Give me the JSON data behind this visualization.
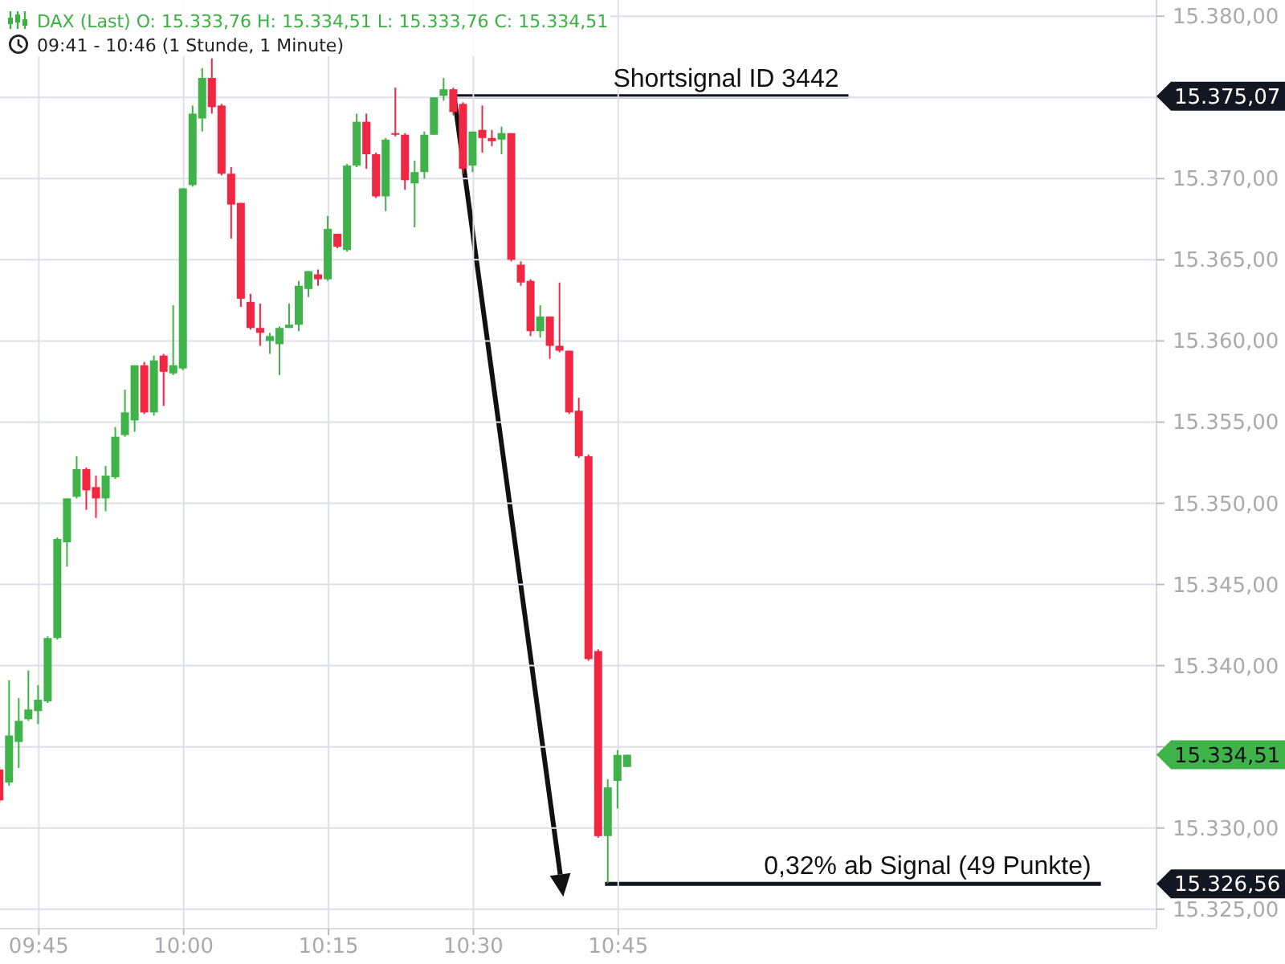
{
  "chart_data": {
    "type": "candlestick",
    "title": "DAX (Last) O: 15.333,76 H: 15.334,51 L: 15.333,76 C: 15.334,51",
    "subtitle": "09:41 - 10:46 (1 Stunde, 1 Minute)",
    "x": [
      9.6833,
      9.7,
      9.7167,
      9.7333,
      9.75,
      9.7667,
      9.7833,
      9.8,
      9.8167,
      9.8333,
      9.85,
      9.8667,
      9.8833,
      9.9,
      9.9167,
      9.9333,
      9.95,
      9.9667,
      9.9833,
      10,
      10.0167,
      10.0333,
      10.05,
      10.0667,
      10.0833,
      10.1,
      10.1167,
      10.1333,
      10.15,
      10.1667,
      10.1833,
      10.2,
      10.2167,
      10.2333,
      10.25,
      10.2667,
      10.2833,
      10.3,
      10.3167,
      10.3333,
      10.35,
      10.3667,
      10.3833,
      10.4,
      10.4167,
      10.4333,
      10.45,
      10.4667,
      10.4833,
      10.5,
      10.5167,
      10.5333,
      10.55,
      10.5667,
      10.5833,
      10.6,
      10.6167,
      10.6333,
      10.65,
      10.6667,
      10.6833,
      10.7,
      10.7167,
      10.7333,
      10.75,
      10.7667
    ],
    "ohlc": [
      [
        15333.6,
        15333.8,
        15331.5,
        15331.7
      ],
      [
        15332.8,
        15339.1,
        15332.6,
        15335.7
      ],
      [
        15335.3,
        15338.0,
        15333.7,
        15336.6
      ],
      [
        15336.7,
        15339.7,
        15336.6,
        15337.3
      ],
      [
        15337.2,
        15338.8,
        15336.4,
        15337.9
      ],
      [
        15337.8,
        15341.8,
        15337.7,
        15341.7
      ],
      [
        15341.7,
        15347.9,
        15341.6,
        15347.8
      ],
      [
        15347.6,
        15350.3,
        15346.1,
        15350.3
      ],
      [
        15350.4,
        15352.9,
        15350.3,
        15352.1
      ],
      [
        15352.1,
        15352.2,
        15349.6,
        15350.8
      ],
      [
        15351.0,
        15351.7,
        15349.1,
        15350.3
      ],
      [
        15350.3,
        15352.3,
        15349.5,
        15351.7
      ],
      [
        15351.6,
        15354.7,
        15351.5,
        15354.1
      ],
      [
        15354.2,
        15357.0,
        15354.1,
        15355.6
      ],
      [
        15355.1,
        15358.5,
        15354.4,
        15358.5
      ],
      [
        15358.5,
        15358.7,
        15355.5,
        15355.6
      ],
      [
        15355.6,
        15359.1,
        15355.4,
        15358.8
      ],
      [
        15359.1,
        15359.2,
        15356.0,
        15358.1
      ],
      [
        15358.0,
        15362.2,
        15357.9,
        15358.5
      ],
      [
        15358.3,
        15369.4,
        15358.2,
        15369.4
      ],
      [
        15369.6,
        15374.5,
        15369.5,
        15374.0
      ],
      [
        15373.7,
        15376.8,
        15372.9,
        15376.2
      ],
      [
        15376.2,
        15377.4,
        15374.0,
        15374.4
      ],
      [
        15374.5,
        15374.6,
        15370.2,
        15370.3
      ],
      [
        15370.3,
        15370.7,
        15366.3,
        15368.4
      ],
      [
        15368.5,
        15368.5,
        15362.1,
        15362.6
      ],
      [
        15362.4,
        15362.9,
        15360.7,
        15360.8
      ],
      [
        15360.8,
        15362.3,
        15359.7,
        15360.5
      ],
      [
        15360.0,
        15360.5,
        15359.2,
        15360.3
      ],
      [
        15359.8,
        15360.9,
        15357.9,
        15360.8
      ],
      [
        15360.8,
        15362.3,
        15360.8,
        15361.0
      ],
      [
        15361.0,
        15363.7,
        15360.6,
        15363.4
      ],
      [
        15363.2,
        15364.3,
        15362.7,
        15364.3
      ],
      [
        15364.1,
        15364.4,
        15363.4,
        15363.8
      ],
      [
        15363.8,
        15367.7,
        15363.7,
        15366.9
      ],
      [
        15366.6,
        15366.6,
        15365.7,
        15365.8
      ],
      [
        15365.6,
        15370.9,
        15365.5,
        15370.8
      ],
      [
        15370.8,
        15374.0,
        15370.7,
        15373.5
      ],
      [
        15373.5,
        15374.0,
        15370.6,
        15371.5
      ],
      [
        15371.5,
        15371.6,
        15368.8,
        15368.9
      ],
      [
        15368.9,
        15372.5,
        15368.0,
        15372.4
      ],
      [
        15372.8,
        15375.6,
        15372.6,
        15372.7
      ],
      [
        15372.7,
        15372.8,
        15369.3,
        15369.9
      ],
      [
        15369.7,
        15371.1,
        15367.0,
        15370.4
      ],
      [
        15370.4,
        15372.9,
        15370.0,
        15372.7
      ],
      [
        15372.7,
        15375.0,
        15372.7,
        15375.0
      ],
      [
        15375.1,
        15376.2,
        15374.8,
        15375.5
      ],
      [
        15375.5,
        15375.6,
        15373.9,
        15374.1
      ],
      [
        15374.6,
        15374.7,
        15370.3,
        15370.6
      ],
      [
        15370.8,
        15372.9,
        15370.4,
        15372.9
      ],
      [
        15373.0,
        15374.5,
        15371.6,
        15372.5
      ],
      [
        15372.5,
        15373.0,
        15372.0,
        15372.3
      ],
      [
        15372.4,
        15373.2,
        15371.5,
        15372.8
      ],
      [
        15372.8,
        15372.8,
        15364.9,
        15365.0
      ],
      [
        15364.7,
        15364.9,
        15363.4,
        15363.6
      ],
      [
        15363.7,
        15363.8,
        15360.3,
        15360.6
      ],
      [
        15360.6,
        15362.2,
        15360.2,
        15361.5
      ],
      [
        15361.5,
        15361.5,
        15358.9,
        15359.7
      ],
      [
        15359.7,
        15363.6,
        15359.3,
        15359.4
      ],
      [
        15359.4,
        15359.4,
        15355.5,
        15355.6
      ],
      [
        15355.7,
        15356.5,
        15352.8,
        15352.9
      ],
      [
        15352.9,
        15353.0,
        15340.3,
        15340.4
      ],
      [
        15340.9,
        15341.0,
        15329.4,
        15329.5
      ],
      [
        15329.5,
        15333.0,
        15326.6,
        15332.5
      ],
      [
        15332.9,
        15334.8,
        15331.2,
        15334.5
      ],
      [
        15333.76,
        15334.51,
        15333.76,
        15334.51
      ]
    ],
    "colors": [
      "#f02642",
      "#3fb24a",
      "#3fb24a",
      "#3fb24a",
      "#3fb24a",
      "#3fb24a",
      "#3fb24a",
      "#3fb24a",
      "#3fb24a",
      "#f02642",
      "#f02642",
      "#3fb24a",
      "#3fb24a",
      "#3fb24a",
      "#3fb24a",
      "#f02642",
      "#3fb24a",
      "#f02642",
      "#3fb24a",
      "#3fb24a",
      "#3fb24a",
      "#3fb24a",
      "#f02642",
      "#f02642",
      "#f02642",
      "#f02642",
      "#f02642",
      "#f02642",
      "#3fb24a",
      "#3fb24a",
      "#3fb24a",
      "#3fb24a",
      "#3fb24a",
      "#f02642",
      "#3fb24a",
      "#f02642",
      "#3fb24a",
      "#3fb24a",
      "#f02642",
      "#f02642",
      "#3fb24a",
      "#f02642",
      "#f02642",
      "#3fb24a",
      "#3fb24a",
      "#3fb24a",
      "#3fb24a",
      "#f02642",
      "#f02642",
      "#3fb24a",
      "#f02642",
      "#f02642",
      "#3fb24a",
      "#f02642",
      "#f02642",
      "#f02642",
      "#3fb24a",
      "#f02642",
      "#f02642",
      "#f02642",
      "#f02642",
      "#f02642",
      "#f02642",
      "#3fb24a",
      "#3fb24a",
      "#3fb24a"
    ],
    "xlim": [
      9.683,
      11.679
    ],
    "xticks": [
      {
        "value": 9.75,
        "label": "09:45"
      },
      {
        "value": 10,
        "label": "10:00"
      },
      {
        "value": 10.25,
        "label": "10:15"
      },
      {
        "value": 10.5,
        "label": "10:30"
      },
      {
        "value": 10.75,
        "label": "10:45"
      }
    ],
    "ylim": [
      15323.8,
      15381.0
    ],
    "yticks": [
      {
        "value": 15325,
        "label": "15.325,00"
      },
      {
        "value": 15330,
        "label": "15.330,00"
      },
      {
        "value": 15335,
        "label": null
      },
      {
        "value": 15340,
        "label": "15.340,00"
      },
      {
        "value": 15345,
        "label": "15.345,00"
      },
      {
        "value": 15350,
        "label": "15.350,00"
      },
      {
        "value": 15355,
        "label": "15.355,00"
      },
      {
        "value": 15360,
        "label": "15.360,00"
      },
      {
        "value": 15365,
        "label": "15.365,00"
      },
      {
        "value": 15370,
        "label": "15.370,00"
      },
      {
        "value": 15375,
        "label": null
      },
      {
        "value": 15380,
        "label": "15.380,00"
      },
      {
        "value": 15375.07,
        "label": "15.375,07"
      },
      {
        "value": 15334.51,
        "label": "15.334,51"
      },
      {
        "value": 15326.56,
        "label": "15.326,56"
      }
    ],
    "grid": true,
    "ref_lines": [
      {
        "axis": "y",
        "value": 15375.07,
        "color": "#131722"
      },
      {
        "axis": "y",
        "value": 15326.56,
        "color": "#131722"
      }
    ],
    "annotations": [
      {
        "text": "Shortsignal ID 3442",
        "x": 10.936,
        "y": 15375.07
      },
      {
        "text": "0,32% ab Signal (49 Punkte)",
        "x": 11.284,
        "y": 15326.56
      }
    ]
  }
}
